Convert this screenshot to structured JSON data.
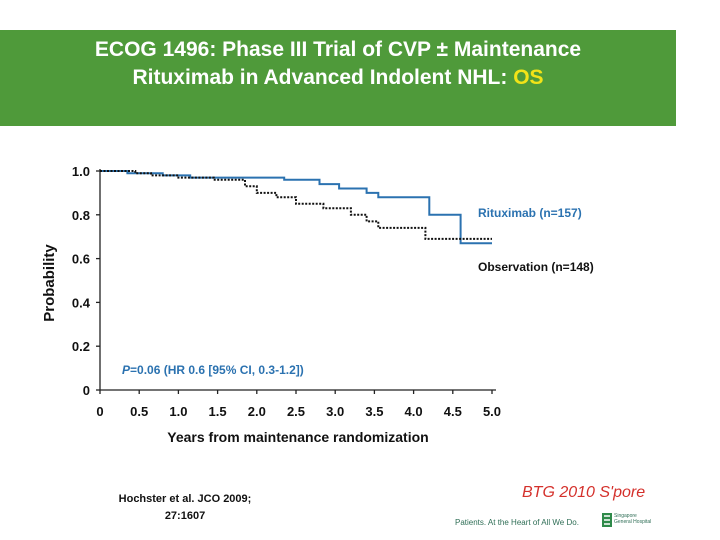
{
  "header": {
    "title_line1": "ECOG 1496: Phase III Trial of CVP ± Maintenance",
    "title_line2_main": "Rituximab in Advanced Indolent NHL: ",
    "title_line2_highlight": "OS"
  },
  "chart_data": {
    "type": "line",
    "ylabel": "Probability",
    "xlabel": "Years from maintenance randomization",
    "xlim": [
      0,
      5.0
    ],
    "ylim": [
      0,
      1.0
    ],
    "x_ticks": [
      "0",
      "0.5",
      "1.0",
      "1.5",
      "2.0",
      "2.5",
      "3.0",
      "3.5",
      "4.0",
      "4.5",
      "5.0"
    ],
    "y_ticks": [
      "0",
      "0.2",
      "0.4",
      "0.6",
      "0.8",
      "1.0"
    ],
    "grid": false,
    "series": [
      {
        "name": "Rituximab (n=157)",
        "style": "solid",
        "color": "#2b72b0",
        "points": [
          [
            0,
            1.0
          ],
          [
            0.35,
            1.0
          ],
          [
            0.35,
            0.99
          ],
          [
            0.8,
            0.99
          ],
          [
            0.8,
            0.98
          ],
          [
            1.15,
            0.98
          ],
          [
            1.15,
            0.97
          ],
          [
            2.35,
            0.97
          ],
          [
            2.35,
            0.96
          ],
          [
            2.8,
            0.96
          ],
          [
            2.8,
            0.94
          ],
          [
            3.05,
            0.94
          ],
          [
            3.05,
            0.92
          ],
          [
            3.4,
            0.92
          ],
          [
            3.4,
            0.9
          ],
          [
            3.55,
            0.9
          ],
          [
            3.55,
            0.88
          ],
          [
            4.2,
            0.88
          ],
          [
            4.2,
            0.8
          ],
          [
            4.6,
            0.8
          ],
          [
            4.6,
            0.67
          ],
          [
            5.0,
            0.67
          ]
        ]
      },
      {
        "name": "Observation (n=148)",
        "style": "dotted",
        "color": "#111111",
        "points": [
          [
            0,
            1.0
          ],
          [
            0.45,
            1.0
          ],
          [
            0.45,
            0.99
          ],
          [
            0.65,
            0.99
          ],
          [
            0.65,
            0.98
          ],
          [
            1.0,
            0.98
          ],
          [
            1.0,
            0.97
          ],
          [
            1.45,
            0.97
          ],
          [
            1.45,
            0.96
          ],
          [
            1.85,
            0.96
          ],
          [
            1.85,
            0.93
          ],
          [
            2.0,
            0.93
          ],
          [
            2.0,
            0.9
          ],
          [
            2.25,
            0.9
          ],
          [
            2.25,
            0.88
          ],
          [
            2.5,
            0.88
          ],
          [
            2.5,
            0.85
          ],
          [
            2.85,
            0.85
          ],
          [
            2.85,
            0.83
          ],
          [
            3.2,
            0.83
          ],
          [
            3.2,
            0.8
          ],
          [
            3.4,
            0.8
          ],
          [
            3.4,
            0.77
          ],
          [
            3.55,
            0.77
          ],
          [
            3.55,
            0.74
          ],
          [
            4.15,
            0.74
          ],
          [
            4.15,
            0.69
          ],
          [
            4.6,
            0.69
          ],
          [
            4.6,
            0.69
          ],
          [
            5.0,
            0.69
          ]
        ]
      }
    ],
    "annotation": {
      "p_label": "P",
      "text": "=0.06 (HR 0.6 [95% CI, 0.3-1.2])"
    }
  },
  "footer": {
    "reference_line1": "Hochster et al. JCO 2009;",
    "reference_line2": "27:1607",
    "event_label": "BTG 2010 S'pore",
    "tagline": "Patients. At the Heart of All We Do.",
    "hospital_line1": "Singapore",
    "hospital_line2": "General Hospital"
  }
}
